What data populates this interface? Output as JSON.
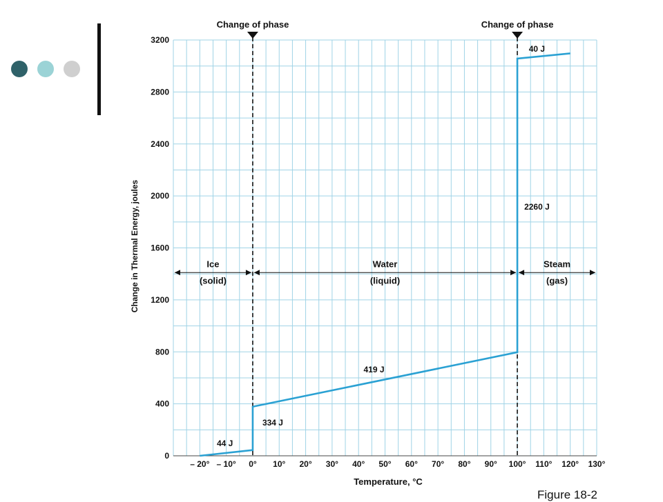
{
  "slide": {
    "dot_colors": [
      "#2F6269",
      "#9BD3D6",
      "#CFCFCF"
    ],
    "figure_caption": "Figure 18-2"
  },
  "colors": {
    "grid": "#9fd3e6",
    "curve": "#2aa1d3",
    "text": "#111111"
  },
  "chart_data": {
    "type": "line",
    "title": "",
    "xlabel": "Temperature, °C",
    "ylabel": "Change in Thermal Energy, joules",
    "xlim": [
      -30,
      130
    ],
    "ylim": [
      0,
      3200
    ],
    "x_ticks": [
      {
        "value": -20,
        "label": "– 20°"
      },
      {
        "value": -10,
        "label": "– 10°"
      },
      {
        "value": 0,
        "label": "0°"
      },
      {
        "value": 10,
        "label": "10°"
      },
      {
        "value": 20,
        "label": "20°"
      },
      {
        "value": 30,
        "label": "30°"
      },
      {
        "value": 40,
        "label": "40°"
      },
      {
        "value": 50,
        "label": "50°"
      },
      {
        "value": 60,
        "label": "60°"
      },
      {
        "value": 70,
        "label": "70°"
      },
      {
        "value": 80,
        "label": "80°"
      },
      {
        "value": 90,
        "label": "90°"
      },
      {
        "value": 100,
        "label": "100°"
      },
      {
        "value": 110,
        "label": "110°"
      },
      {
        "value": 120,
        "label": "120°"
      },
      {
        "value": 130,
        "label": "130°"
      }
    ],
    "y_ticks": [
      0,
      400,
      800,
      1200,
      1600,
      2000,
      2400,
      2800,
      3200
    ],
    "grid": true,
    "series": [
      {
        "x": [
          -20,
          0,
          0,
          100,
          100,
          120
        ],
        "y": [
          0,
          44,
          378,
          797,
          3057,
          3097
        ]
      }
    ],
    "segment_labels": [
      {
        "text": "44 J",
        "x": -10,
        "y": 22
      },
      {
        "text": "334 J",
        "x": 0,
        "y": 211
      },
      {
        "text": "419 J",
        "x": 50,
        "y": 588
      },
      {
        "text": "2260 J",
        "x": 100,
        "y": 1927
      },
      {
        "text": "40 J",
        "x": 110,
        "y": 3077
      }
    ],
    "phase_changes": [
      {
        "x": 0,
        "label": "Change of phase"
      },
      {
        "x": 100,
        "label": "Change of phase"
      }
    ],
    "regions": [
      {
        "from": -30,
        "to": 0,
        "name": "Ice",
        "state": "(solid)"
      },
      {
        "from": 0,
        "to": 100,
        "name": "Water",
        "state": "(liquid)"
      },
      {
        "from": 100,
        "to": 130,
        "name": "Steam",
        "state": "(gas)"
      }
    ],
    "regions_y": 1410
  }
}
